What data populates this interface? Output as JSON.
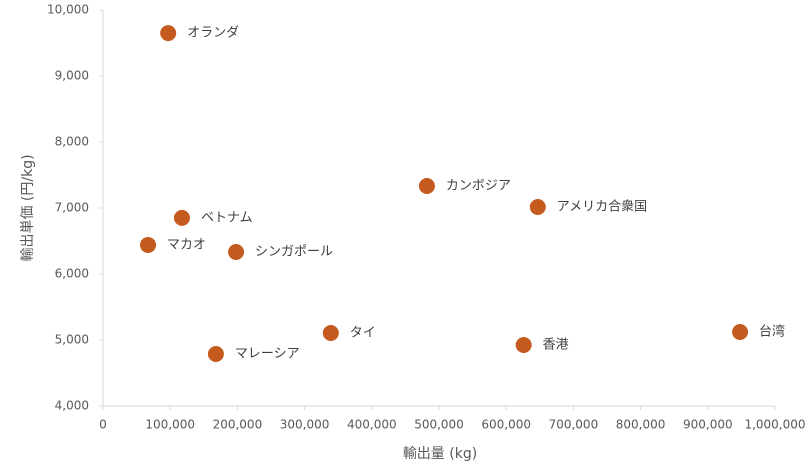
{
  "chart_data": {
    "type": "scatter",
    "x_label": "輸出量 (kg)",
    "y_label": "輸出単価 (円/kg)",
    "labels": [
      "オランダ",
      "マカオ",
      "ベトナム",
      "シンガポール",
      "マレーシア",
      "タイ",
      "カンボジア",
      "アメリカ合衆国",
      "香港",
      "台湾"
    ],
    "x": [
      97000,
      67000,
      117500,
      198000,
      168000,
      339000,
      482000,
      647000,
      626000,
      948000
    ],
    "y": [
      9650,
      6440,
      6850,
      6333,
      4788,
      5106,
      7333,
      7015,
      4924,
      5121
    ],
    "color": "#c55a1e",
    "xlim": [
      0,
      1000000
    ],
    "xticks": [
      0,
      {
        "value": 100000,
        "label": "100,000"
      },
      {
        "value": 200000,
        "label": "200,000"
      },
      {
        "value": 300000,
        "label": "300,000"
      },
      {
        "value": 400000,
        "label": "400,000"
      },
      {
        "value": 500000,
        "label": "500,000"
      },
      {
        "value": 600000,
        "label": "600,000"
      },
      {
        "value": 700000,
        "label": "700,000"
      },
      {
        "value": 800000,
        "label": "800,000"
      },
      {
        "value": 900000,
        "label": "900,000"
      },
      {
        "value": 1000000,
        "label": "1,000,000"
      }
    ],
    "ylim": [
      4000,
      10000
    ],
    "yticks": [
      {
        "value": 4000,
        "label": "4,000"
      },
      {
        "value": 5000,
        "label": "5,000"
      },
      {
        "value": 6000,
        "label": "6,000"
      },
      {
        "value": 7000,
        "label": "7,000"
      },
      {
        "value": 8000,
        "label": "8,000"
      },
      {
        "value": 9000,
        "label": "9,000"
      },
      {
        "value": 10000,
        "label": "10,000"
      }
    ],
    "grid": false
  }
}
